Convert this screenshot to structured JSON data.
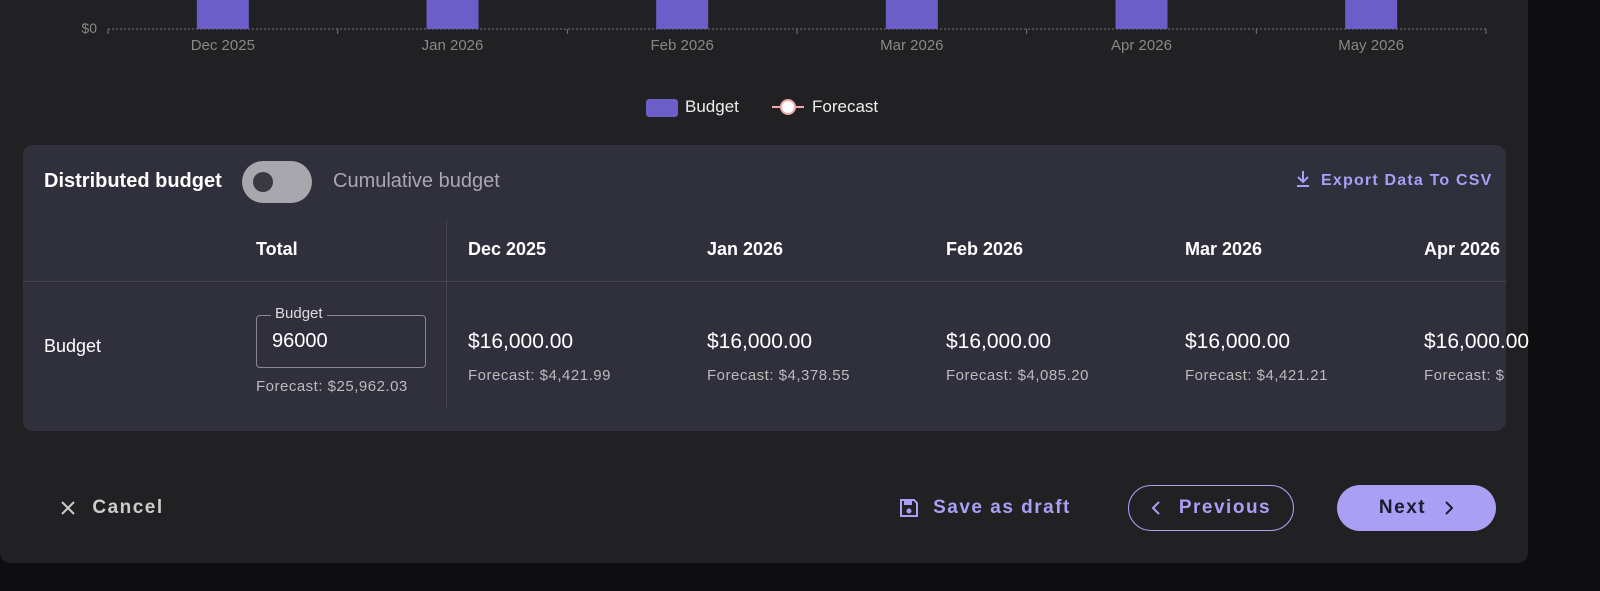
{
  "chart": {
    "y_tick": "$0",
    "x_labels": [
      "Dec 2025",
      "Jan 2026",
      "Feb 2026",
      "Mar 2026",
      "Apr 2026",
      "May 2026"
    ],
    "legend": [
      "Budget",
      "Forecast"
    ]
  },
  "table": {
    "toggle_left": "Distributed budget",
    "toggle_right": "Cumulative budget",
    "export": "Export Data To CSV",
    "headers": [
      "Total",
      "Dec 2025",
      "Jan 2026",
      "Feb 2026",
      "Mar 2026",
      "Apr 2026"
    ],
    "row_label": "Budget",
    "input_label": "Budget",
    "input_value": "96000",
    "total_forecast": "Forecast: $25,962.03",
    "cells": [
      {
        "value": "$16,000.00",
        "forecast": "Forecast: $4,421.99"
      },
      {
        "value": "$16,000.00",
        "forecast": "Forecast: $4,378.55"
      },
      {
        "value": "$16,000.00",
        "forecast": "Forecast: $4,085.20"
      },
      {
        "value": "$16,000.00",
        "forecast": "Forecast: $4,421.21"
      },
      {
        "value": "$16,000.00",
        "forecast": "Forecast: $"
      }
    ]
  },
  "footer": {
    "cancel": "Cancel",
    "draft": "Save as draft",
    "previous": "Previous",
    "next": "Next"
  }
}
